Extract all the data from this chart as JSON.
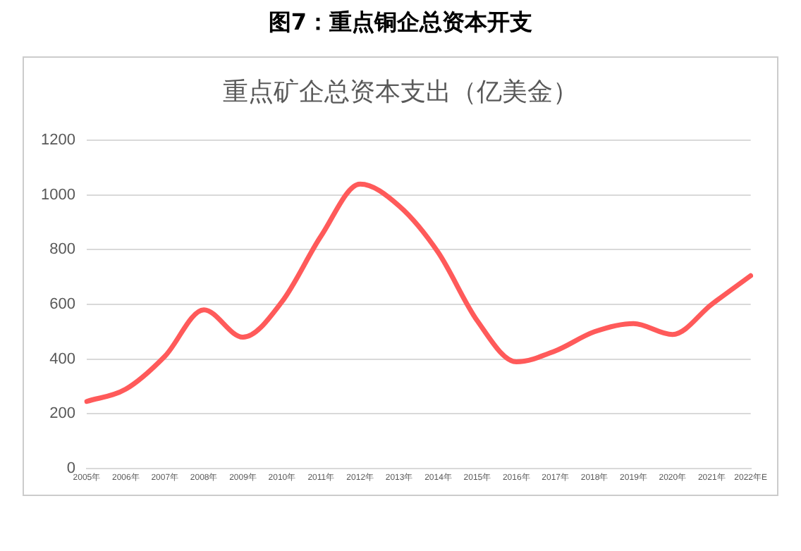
{
  "chart_data": {
    "type": "line",
    "title": "图7：重点铜企总资本开支",
    "subtitle": "重点矿企总资本支出（亿美金）",
    "categories": [
      "2005年",
      "2006年",
      "2007年",
      "2008年",
      "2009年",
      "2010年",
      "2011年",
      "2012年",
      "2013年",
      "2014年",
      "2015年",
      "2016年",
      "2017年",
      "2018年",
      "2019年",
      "2020年",
      "2021年",
      "2022年E"
    ],
    "series": [
      {
        "color": "#ff5a5a",
        "values": [
          245,
          290,
          410,
          580,
          480,
          610,
          850,
          1040,
          960,
          790,
          540,
          390,
          430,
          500,
          530,
          490,
          600,
          705
        ]
      }
    ],
    "ylim": [
      0,
      1200
    ],
    "yticks": [
      0,
      200,
      400,
      600,
      800,
      1000,
      1200
    ],
    "grid": "y",
    "legend": false,
    "marker": "none",
    "line_style": "solid"
  }
}
